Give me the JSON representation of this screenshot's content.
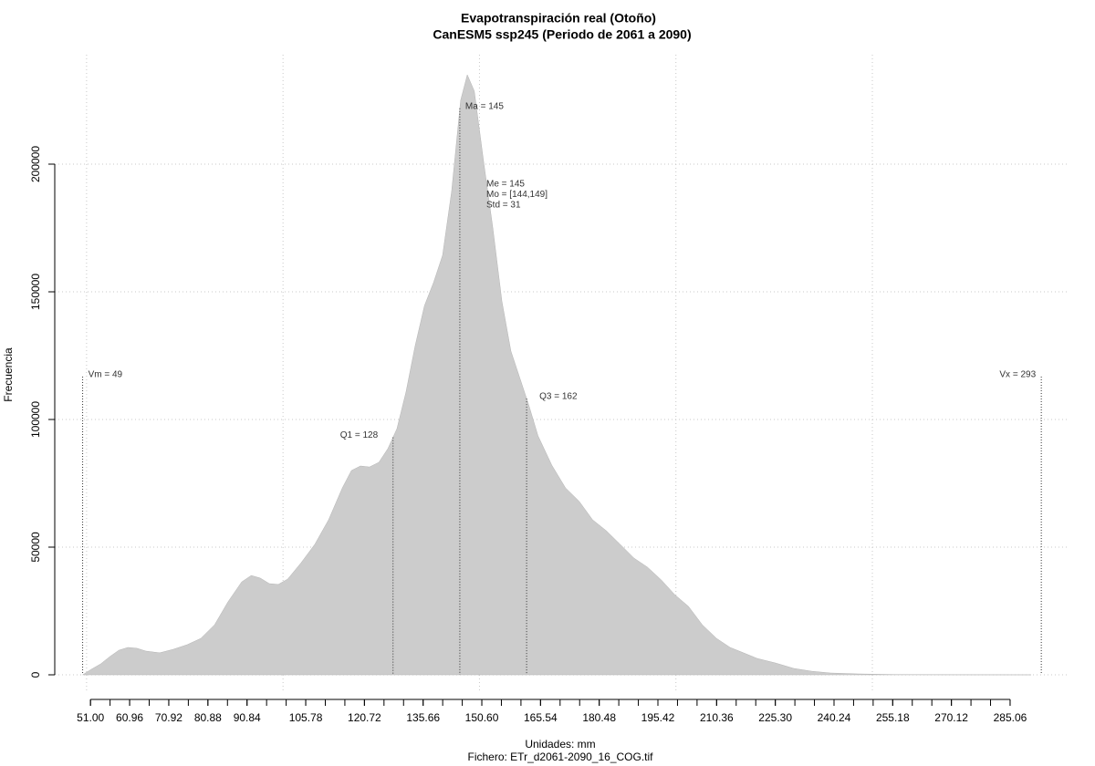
{
  "chart_data": {
    "type": "density",
    "title": "Evapotranspiración real (Otoño)",
    "subtitle": "CanESM5 ssp245 (Periodo de 2061 a 2090)",
    "xlabel": "Unidades: mm",
    "caption": "Fichero: ETr_d2061-2090_16_COG.tif",
    "ylabel": "Frecuencia",
    "color": "#cccccc",
    "grid": true,
    "x": [
      49,
      51.2,
      53.6,
      55.9,
      58.2,
      60.5,
      62.8,
      65.1,
      68.6,
      72.1,
      75.6,
      79.1,
      82.6,
      86.0,
      89.5,
      91.9,
      94.2,
      96.5,
      98.8,
      101.2,
      104.6,
      108.1,
      111.6,
      115.1,
      117.4,
      119.7,
      122.0,
      124.4,
      126.7,
      129.0,
      131.3,
      133.6,
      136.0,
      138.3,
      140.6,
      142.9,
      145.2,
      146.9,
      148.7,
      151.0,
      153.4,
      155.7,
      158.0,
      160.3,
      162.6,
      164.9,
      168.4,
      171.9,
      175.4,
      178.8,
      182.3,
      185.8,
      189.3,
      192.8,
      196.3,
      199.7,
      203.2,
      206.7,
      210.3,
      213.8,
      217.2,
      220.7,
      225.4,
      230.0,
      234.6,
      239.3,
      246.3,
      255.5,
      271.8,
      290.4
    ],
    "values": [
      0,
      2143,
      4300,
      7100,
      9600,
      10700,
      10400,
      9300,
      8600,
      10000,
      11800,
      14300,
      19600,
      28600,
      36400,
      38900,
      37900,
      35700,
      35400,
      37500,
      43900,
      51100,
      60700,
      73200,
      80000,
      81800,
      81400,
      83200,
      88600,
      96400,
      110700,
      128600,
      144600,
      153600,
      164300,
      189300,
      225000,
      235000,
      228600,
      201800,
      175000,
      146400,
      126800,
      116100,
      105400,
      93600,
      82100,
      73200,
      67900,
      60700,
      56400,
      51100,
      45700,
      42100,
      37100,
      31400,
      26800,
      19600,
      14300,
      10700,
      8600,
      6400,
      4600,
      2500,
      1400,
      700,
      360,
      100,
      30,
      0
    ],
    "xlim": [
      41.9,
      299.7
    ],
    "ylim": [
      -7143,
      242857
    ],
    "yticks": [
      0,
      50000,
      100000,
      150000,
      200000
    ],
    "xticks": [
      {
        "value": 51,
        "label": "51.00"
      },
      {
        "value": 60.96,
        "label": "60.96"
      },
      {
        "value": 70.92,
        "label": "70.92"
      },
      {
        "value": 80.88,
        "label": "80.88"
      },
      {
        "value": 90.84,
        "label": "90.84"
      },
      {
        "value": 105.78,
        "label": "105.78"
      },
      {
        "value": 120.72,
        "label": "120.72"
      },
      {
        "value": 135.66,
        "label": "135.66"
      },
      {
        "value": 150.6,
        "label": "150.60"
      },
      {
        "value": 165.54,
        "label": "165.54"
      },
      {
        "value": 180.48,
        "label": "180.48"
      },
      {
        "value": 195.42,
        "label": "195.42"
      },
      {
        "value": 210.36,
        "label": "210.36"
      },
      {
        "value": 225.3,
        "label": "225.30"
      },
      {
        "value": 240.24,
        "label": "240.24"
      },
      {
        "value": 255.18,
        "label": "255.18"
      },
      {
        "value": 270.12,
        "label": "270.12"
      },
      {
        "value": 285.06,
        "label": "285.06"
      }
    ],
    "xminorticks": [
      51,
      55.98,
      60.96,
      65.94,
      70.92,
      75.9,
      80.88,
      85.86,
      90.84,
      95.82,
      100.8,
      105.78,
      110.76,
      115.74,
      120.72,
      125.7,
      130.68,
      135.66,
      140.64,
      145.62,
      150.6,
      155.58,
      160.56,
      165.54,
      170.52,
      175.5,
      180.48,
      185.46,
      190.44,
      195.42,
      200.4,
      205.38,
      210.36,
      215.34,
      220.32,
      225.3,
      230.28,
      235.26,
      240.24,
      245.22,
      250.2,
      255.18,
      260.16,
      265.14,
      270.12,
      275.1,
      280.08,
      285.06
    ],
    "xgrid": [
      50,
      100,
      150,
      200,
      250
    ],
    "stats": [
      {
        "label": "Vm = 49",
        "x": 49
      },
      {
        "label": "Q1 = 128",
        "x": 128
      },
      {
        "label": "Ma = 145",
        "x": 145
      },
      {
        "label": "Q3 = 162",
        "x": 162
      },
      {
        "label": "Vx = 293",
        "x": 293
      }
    ],
    "summary": [
      "Me = 145",
      "Mo = [144,149]",
      "Std = 31"
    ]
  }
}
